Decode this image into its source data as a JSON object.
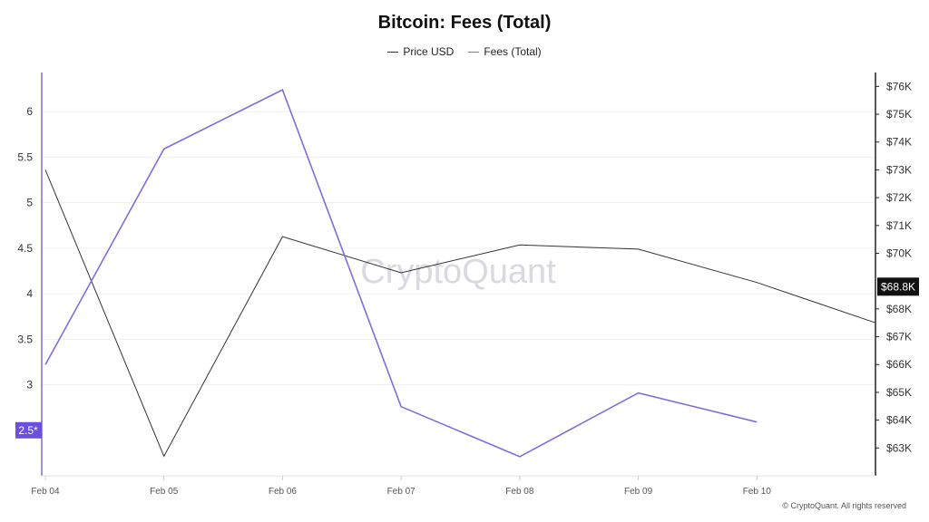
{
  "chart_data": {
    "type": "line",
    "title": "Bitcoin: Fees (Total)",
    "watermark": "CryptoQuant",
    "footer": "© CryptoQuant. All rights reserved",
    "categories": [
      "Feb 04",
      "Feb 05",
      "Feb 06",
      "Feb 07",
      "Feb 08",
      "Feb 09",
      "Feb 10"
    ],
    "x_extent_days": 7,
    "series": [
      {
        "name": "Price USD",
        "axis": "right",
        "color": "#333333",
        "x": [
          0,
          1,
          2,
          3,
          4,
          5,
          6,
          7
        ],
        "values": [
          73000,
          62700,
          70600,
          69300,
          70300,
          70150,
          68950,
          67500
        ]
      },
      {
        "name": "Fees (Total)",
        "axis": "left",
        "color": "#7b6fdc",
        "x": [
          0,
          1,
          2,
          3,
          4,
          5,
          6
        ],
        "values": [
          3.22,
          5.59,
          6.24,
          2.76,
          2.21,
          2.91,
          2.59
        ]
      }
    ],
    "y_left": {
      "ticks": [
        3,
        3.5,
        4,
        4.5,
        5,
        5.5,
        6
      ],
      "tick_labels": [
        "3",
        "3.5",
        "4",
        "4.5",
        "5",
        "5.5",
        "6"
      ],
      "ylim": [
        2.0,
        6.43
      ],
      "marker_label": "2.5*",
      "marker_value": 2.5,
      "marker_color": "#6a4fe0"
    },
    "y_right": {
      "ticks": [
        63000,
        64000,
        65000,
        66000,
        67000,
        68000,
        70000,
        71000,
        72000,
        73000,
        74000,
        75000,
        76000
      ],
      "tick_labels": [
        "$63K",
        "$64K",
        "$65K",
        "$66K",
        "$67K",
        "$68K",
        "$70K",
        "$71K",
        "$72K",
        "$73K",
        "$74K",
        "$75K",
        "$76K"
      ],
      "ylim": [
        62000,
        76500
      ],
      "marker_label": "$68.8K",
      "marker_value": 68800,
      "marker_color": "#111111"
    },
    "grid": true
  }
}
